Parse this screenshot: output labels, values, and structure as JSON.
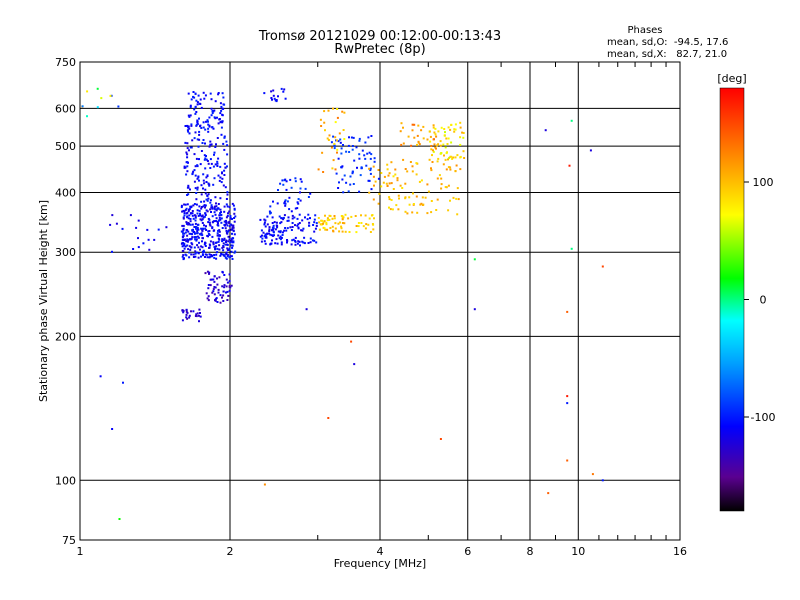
{
  "chart_data": {
    "type": "scatter",
    "title": "Tromsø 20121029 00:12:00-00:13:43",
    "subtitle": "RwPretec (8p)",
    "info": {
      "heading": "Phases",
      "line1": "mean, sd,O:  -94.5, 17.6",
      "line2": "mean, sd,X:   82.7, 21.0"
    },
    "xlabel": "Frequency [MHz]",
    "ylabel": "Stationary phase Virtual Height [km]",
    "x_scale": "log",
    "y_scale": "log",
    "xlim": [
      1,
      16
    ],
    "ylim": [
      75,
      750
    ],
    "x_ticks": [
      1,
      2,
      4,
      6,
      8,
      10,
      16
    ],
    "x_tick_labels": [
      "1",
      "2",
      "4",
      "6",
      "8",
      "10",
      "16"
    ],
    "y_ticks": [
      75,
      100,
      200,
      300,
      400,
      500,
      600,
      750
    ],
    "y_tick_labels": [
      "75",
      "100",
      "200",
      "300",
      "400",
      "500",
      "600",
      "750"
    ],
    "grid": true,
    "colorbar": {
      "label": "[deg]",
      "range": [
        -180,
        180
      ],
      "ticks": [
        100,
        0,
        -100
      ],
      "tick_labels": [
        "100",
        "0",
        "-100"
      ]
    },
    "clusters": [
      {
        "x": [
          1.6,
          2.05
        ],
        "y": [
          290,
          380
        ],
        "phase": [
          -125,
          -95
        ],
        "count": 420
      },
      {
        "x": [
          1.62,
          1.98
        ],
        "y": [
          380,
          560
        ],
        "phase": [
          -120,
          -95
        ],
        "count": 170
      },
      {
        "x": [
          1.65,
          1.95
        ],
        "y": [
          560,
          650
        ],
        "phase": [
          -115,
          -95
        ],
        "count": 70
      },
      {
        "x": [
          1.78,
          2.02
        ],
        "y": [
          235,
          275
        ],
        "phase": [
          -140,
          -110
        ],
        "count": 60
      },
      {
        "x": [
          1.6,
          1.75
        ],
        "y": [
          215,
          228
        ],
        "phase": [
          -140,
          -115
        ],
        "count": 25
      },
      {
        "x": [
          2.3,
          3.0
        ],
        "y": [
          310,
          360
        ],
        "phase": [
          -120,
          -95
        ],
        "count": 140
      },
      {
        "x": [
          2.4,
          2.9
        ],
        "y": [
          360,
          440
        ],
        "phase": [
          -115,
          -80
        ],
        "count": 40
      },
      {
        "x": [
          2.3,
          2.6
        ],
        "y": [
          620,
          660
        ],
        "phase": [
          -120,
          -100
        ],
        "count": 15
      },
      {
        "x": [
          3.0,
          3.9
        ],
        "y": [
          330,
          360
        ],
        "phase": [
          75,
          115
        ],
        "count": 70
      },
      {
        "x": [
          3.2,
          4.0
        ],
        "y": [
          400,
          530
        ],
        "phase": [
          -110,
          -80
        ],
        "count": 70
      },
      {
        "x": [
          3.0,
          3.4
        ],
        "y": [
          440,
          600
        ],
        "phase": [
          70,
          130
        ],
        "count": 30
      },
      {
        "x": [
          3.8,
          5.8
        ],
        "y": [
          360,
          470
        ],
        "phase": [
          80,
          120
        ],
        "count": 110
      },
      {
        "x": [
          5.0,
          5.9
        ],
        "y": [
          470,
          560
        ],
        "phase": [
          60,
          110
        ],
        "count": 60
      },
      {
        "x": [
          4.4,
          5.2
        ],
        "y": [
          480,
          560
        ],
        "phase": [
          90,
          140
        ],
        "count": 30
      },
      {
        "x": [
          1.1,
          1.5
        ],
        "y": [
          300,
          360
        ],
        "phase": [
          -125,
          -100
        ],
        "count": 18
      },
      {
        "x": [
          1.0,
          1.2
        ],
        "y": [
          570,
          660
        ],
        "phase": [
          -120,
          120
        ],
        "count": 10
      }
    ],
    "points": [
      {
        "x": 1.22,
        "y": 160,
        "phase": -100
      },
      {
        "x": 1.1,
        "y": 165,
        "phase": -110
      },
      {
        "x": 1.16,
        "y": 128,
        "phase": -110
      },
      {
        "x": 1.2,
        "y": 83,
        "phase": 20
      },
      {
        "x": 2.35,
        "y": 98,
        "phase": 120
      },
      {
        "x": 2.85,
        "y": 228,
        "phase": -120
      },
      {
        "x": 3.15,
        "y": 135,
        "phase": 150
      },
      {
        "x": 3.55,
        "y": 175,
        "phase": -120
      },
      {
        "x": 3.5,
        "y": 195,
        "phase": 150
      },
      {
        "x": 5.3,
        "y": 122,
        "phase": 150
      },
      {
        "x": 6.2,
        "y": 228,
        "phase": -120
      },
      {
        "x": 6.2,
        "y": 290,
        "phase": 10
      },
      {
        "x": 8.6,
        "y": 540,
        "phase": -120
      },
      {
        "x": 8.7,
        "y": 94,
        "phase": 140
      },
      {
        "x": 9.5,
        "y": 150,
        "phase": 170
      },
      {
        "x": 9.5,
        "y": 145,
        "phase": -100
      },
      {
        "x": 9.5,
        "y": 110,
        "phase": 140
      },
      {
        "x": 9.5,
        "y": 225,
        "phase": 140
      },
      {
        "x": 9.6,
        "y": 455,
        "phase": 170
      },
      {
        "x": 9.7,
        "y": 565,
        "phase": 0
      },
      {
        "x": 9.7,
        "y": 305,
        "phase": 0
      },
      {
        "x": 10.6,
        "y": 490,
        "phase": -120
      },
      {
        "x": 10.7,
        "y": 103,
        "phase": 130
      },
      {
        "x": 11.2,
        "y": 280,
        "phase": 150
      },
      {
        "x": 11.2,
        "y": 100,
        "phase": -100
      }
    ]
  }
}
